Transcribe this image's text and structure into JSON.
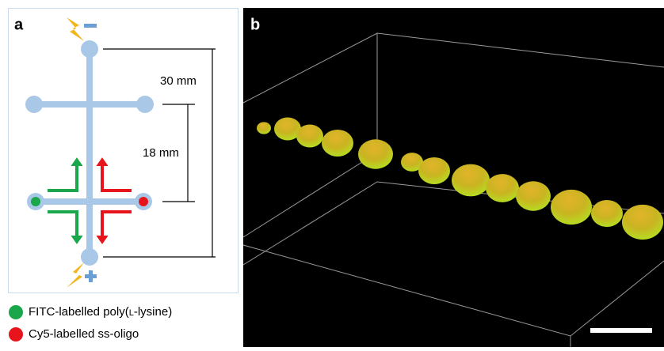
{
  "panels": [
    {
      "label": "a",
      "dimensions": [
        "30 mm",
        "18 mm"
      ],
      "legend": [
        {
          "prefix": "FITC-labelled poly(",
          "small_caps": "l",
          "suffix": "-lysine)",
          "color": "#1aa64a"
        },
        {
          "prefix": "Cy5-labelled ss-oligo",
          "small_caps": "",
          "suffix": "",
          "color": "#e8141c"
        }
      ]
    },
    {
      "label": "b"
    }
  ]
}
